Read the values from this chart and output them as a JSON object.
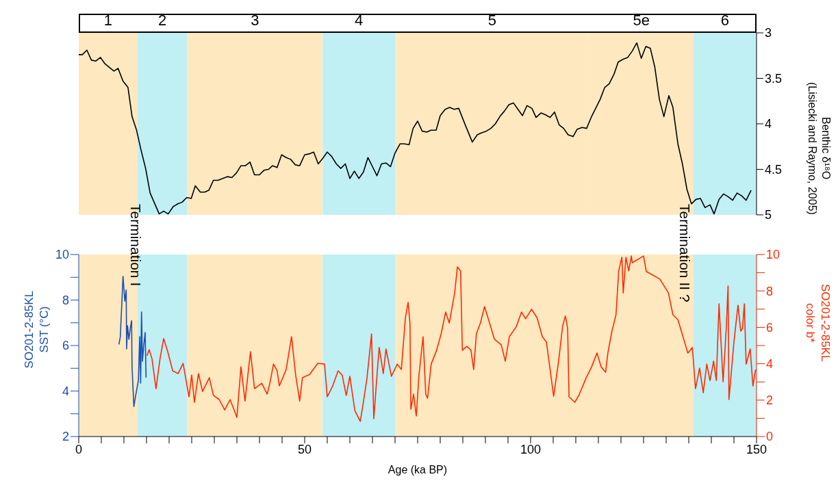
{
  "chart_data": [
    {
      "type": "line",
      "ylabel": "Benthic δ¹⁸O\n(Lisiecki and Raymo, 2005)",
      "xlim": [
        0,
        150
      ],
      "ylim": [
        5,
        3
      ],
      "yticks": [
        3,
        3.5,
        4,
        4.5,
        5
      ],
      "tick_labels": "y",
      "grid": false,
      "legend": false,
      "marker": "none",
      "bands": [
        {
          "axis": "x",
          "from": 0,
          "to": 13,
          "color": "#fde8c0",
          "label": "1"
        },
        {
          "axis": "x",
          "from": 13,
          "to": 24,
          "color": "#c0eff4",
          "label": "2"
        },
        {
          "axis": "x",
          "from": 24,
          "to": 54,
          "color": "#fde8c0",
          "label": "3"
        },
        {
          "axis": "x",
          "from": 54,
          "to": 70,
          "color": "#c0eff4",
          "label": "4"
        },
        {
          "axis": "x",
          "from": 70,
          "to": 113,
          "color": "#fde8c0",
          "label": "5"
        },
        {
          "axis": "x",
          "from": 113,
          "to": 136,
          "color": "#fde8c0",
          "label": "5e"
        },
        {
          "axis": "x",
          "from": 136,
          "to": 150,
          "color": "#c0eff4",
          "label": "6"
        }
      ],
      "series": [
        {
          "color": "#000000",
          "x": [
            0,
            0.8,
            1.8,
            2.8,
            3.8,
            4.8,
            5.8,
            6.8,
            7.8,
            8.7,
            9.8,
            10.9,
            11.8,
            12.8,
            13.8,
            14.8,
            15.8,
            17.8,
            18.8,
            19.8,
            20.9,
            21.9,
            22.9,
            23.9,
            24.9,
            25.8,
            26.9,
            27.9,
            28.8,
            29.8,
            30.8,
            31.9,
            32.9,
            33.9,
            34.9,
            35.9,
            36.9,
            37.9,
            38.9,
            40.0,
            41.0,
            42.0,
            42.9,
            43.9,
            44.9,
            45.9,
            46.9,
            47.9,
            48.9,
            50.0,
            51.0,
            52.0,
            53.0,
            54.0,
            55.0,
            56.0,
            57.0,
            58.0,
            59.0,
            60.0,
            61.0,
            62.0,
            63.0,
            64.0,
            65.0,
            66.0,
            67.0,
            68.0,
            69.0,
            70.0,
            71.1,
            72.1,
            73.1,
            74.0,
            75.0,
            76.0,
            77.0,
            78.0,
            79.1,
            80.0,
            81.1,
            82.1,
            83.1,
            84.1,
            85.6,
            87.1,
            88.2,
            89.1,
            90.2,
            91.2,
            92.2,
            93.2,
            94.2,
            95.2,
            96.2,
            97.2,
            98.2,
            99.2,
            100.3,
            101.2,
            102.3,
            103.3,
            104.3,
            105.3,
            106.3,
            107.3,
            108.3,
            109.4,
            110.3,
            111.4,
            112.4,
            113.4,
            114.4,
            115.4,
            116.4,
            117.4,
            118.5,
            119.4,
            120.5,
            121.5,
            122.5,
            123.5,
            124.5,
            125.5,
            126.5,
            127.5,
            128.5,
            129.5,
            130.6,
            131.5,
            132.6,
            133.6,
            134.6,
            135.6,
            136.6,
            137.6,
            138.6,
            139.7,
            140.6,
            141.7,
            142.7,
            143.7,
            144.7,
            145.7,
            146.7,
            147.7,
            148.8
          ],
          "values": [
            3.24,
            3.24,
            3.19,
            3.3,
            3.31,
            3.27,
            3.34,
            3.38,
            3.42,
            3.39,
            3.53,
            3.6,
            3.92,
            4.07,
            4.29,
            4.49,
            4.76,
            4.99,
            4.96,
            4.99,
            4.91,
            4.88,
            4.86,
            4.81,
            4.82,
            4.68,
            4.75,
            4.75,
            4.73,
            4.62,
            4.62,
            4.6,
            4.58,
            4.59,
            4.54,
            4.46,
            4.46,
            4.42,
            4.56,
            4.56,
            4.51,
            4.5,
            4.46,
            4.48,
            4.34,
            4.37,
            4.39,
            4.45,
            4.46,
            4.34,
            4.33,
            4.31,
            4.44,
            4.38,
            4.31,
            4.36,
            4.44,
            4.49,
            4.44,
            4.6,
            4.52,
            4.6,
            4.53,
            4.37,
            4.47,
            4.57,
            4.44,
            4.43,
            4.47,
            4.32,
            4.22,
            4.22,
            4.23,
            4.05,
            3.97,
            4.08,
            4.09,
            4.07,
            4.07,
            3.91,
            3.84,
            3.82,
            3.84,
            3.83,
            4.02,
            4.2,
            4.12,
            4.1,
            4.08,
            4.05,
            4.0,
            3.92,
            3.86,
            3.79,
            3.77,
            3.84,
            3.91,
            3.8,
            3.83,
            3.93,
            3.88,
            3.9,
            3.93,
            3.87,
            4.01,
            4.05,
            4.12,
            4.14,
            4.06,
            4.04,
            4.05,
            3.93,
            3.83,
            3.73,
            3.6,
            3.56,
            3.45,
            3.32,
            3.29,
            3.27,
            3.2,
            3.11,
            3.28,
            3.15,
            3.17,
            3.38,
            3.73,
            3.92,
            3.69,
            3.82,
            4.22,
            4.44,
            4.72,
            4.88,
            4.83,
            4.82,
            4.92,
            4.89,
            4.99,
            4.83,
            4.77,
            4.8,
            4.84,
            4.76,
            4.79,
            4.84,
            4.73
          ]
        }
      ]
    },
    {
      "type": "line",
      "xlabel": "Age (ka BP)",
      "ylabel": "SO201-2-85KL\nSST (°C)",
      "y2label": "SO201-2-85KL\ncolor b*",
      "xlim": [
        0,
        150
      ],
      "xticks": [
        0,
        {
          "value": 5,
          "label": null
        },
        {
          "value": 10,
          "label": null
        },
        {
          "value": 15,
          "label": null
        },
        {
          "value": 20,
          "label": null
        },
        {
          "value": 25,
          "label": null
        },
        {
          "value": 30,
          "label": null
        },
        {
          "value": 35,
          "label": null
        },
        {
          "value": 40,
          "label": null
        },
        {
          "value": 45,
          "label": null
        },
        50,
        {
          "value": 55,
          "label": null
        },
        {
          "value": 60,
          "label": null
        },
        {
          "value": 65,
          "label": null
        },
        {
          "value": 70,
          "label": null
        },
        {
          "value": 75,
          "label": null
        },
        {
          "value": 80,
          "label": null
        },
        {
          "value": 85,
          "label": null
        },
        {
          "value": 90,
          "label": null
        },
        {
          "value": 95,
          "label": null
        },
        100,
        {
          "value": 105,
          "label": null
        },
        {
          "value": 110,
          "label": null
        },
        {
          "value": 115,
          "label": null
        },
        {
          "value": 120,
          "label": null
        },
        {
          "value": 125,
          "label": null
        },
        {
          "value": 130,
          "label": null
        },
        {
          "value": 135,
          "label": null
        },
        {
          "value": 140,
          "label": null
        },
        {
          "value": 145,
          "label": null
        },
        150
      ],
      "ylim": [
        2,
        10
      ],
      "yticks": [
        2,
        {
          "value": 3,
          "label": null
        },
        4,
        {
          "value": 5,
          "label": null
        },
        6,
        {
          "value": 7,
          "label": null
        },
        8,
        {
          "value": 9,
          "label": null
        },
        10
      ],
      "y2lim": [
        0,
        10
      ],
      "y2ticks": [
        0,
        {
          "value": 1,
          "label": null
        },
        2,
        {
          "value": 3,
          "label": null
        },
        4,
        {
          "value": 5,
          "label": null
        },
        6,
        {
          "value": 7,
          "label": null
        },
        8,
        {
          "value": 9,
          "label": null
        },
        10
      ],
      "grid": false,
      "legend": false,
      "marker": "none",
      "annotations": [
        "Termination I",
        "Termination II ?"
      ],
      "bands": [
        {
          "axis": "x",
          "from": 0,
          "to": 13,
          "color": "#fde8c0"
        },
        {
          "axis": "x",
          "from": 13,
          "to": 24,
          "color": "#c0eff4"
        },
        {
          "axis": "x",
          "from": 24,
          "to": 54,
          "color": "#fde8c0"
        },
        {
          "axis": "x",
          "from": 54,
          "to": 70,
          "color": "#c0eff4"
        },
        {
          "axis": "x",
          "from": 70,
          "to": 136,
          "color": "#fde8c0"
        },
        {
          "axis": "x",
          "from": 136,
          "to": 150,
          "color": "#c0eff4"
        }
      ],
      "series": [
        {
          "color": "#1a4fb0",
          "axis": "y",
          "x": [
            8.9,
            9.2,
            9.8,
            10.2,
            10.5,
            10.6,
            10.8,
            11.1,
            11.4,
            11.7,
            11.8,
            12.2,
            12.6,
            13.2,
            13.5,
            13.7,
            13.9,
            14.1,
            14.4,
            14.7,
            14.9
          ],
          "values": [
            6.05,
            6.39,
            9.04,
            7.95,
            8.44,
            5.85,
            6.87,
            6.27,
            6.75,
            7.09,
            5.07,
            3.32,
            3.8,
            4.47,
            6.39,
            4.35,
            7.47,
            5.31,
            6.03,
            6.57,
            4.59
          ]
        },
        {
          "color": "#ff2a00",
          "axis": "y2",
          "x": [
            15.1,
            15.6,
            16.2,
            17.1,
            18.0,
            18.8,
            19.7,
            20.8,
            22.0,
            23.1,
            24.4,
            25.0,
            25.6,
            26.5,
            27.4,
            28.9,
            29.8,
            31.1,
            32.3,
            33.5,
            35.0,
            35.9,
            36.8,
            38.0,
            38.9,
            40.5,
            41.7,
            42.3,
            43.1,
            43.9,
            44.4,
            45.9,
            47.1,
            48.0,
            48.9,
            49.5,
            51.1,
            52.9,
            54.4,
            55.0,
            56.2,
            57.4,
            58.3,
            59.2,
            60.0,
            61.1,
            62.3,
            62.9,
            63.8,
            64.8,
            65.3,
            66.1,
            66.5,
            67.4,
            68.0,
            69.2,
            70.5,
            71.4,
            72.3,
            72.9,
            73.3,
            73.5,
            74.1,
            74.7,
            75.3,
            76.2,
            76.8,
            77.2,
            78.0,
            79.2,
            80.2,
            81.2,
            82.0,
            83.2,
            83.8,
            84.5,
            84.9,
            85.9,
            86.8,
            87.4,
            88.0,
            88.9,
            89.8,
            91.1,
            92.0,
            93.5,
            94.4,
            95.3,
            96.8,
            98.0,
            98.9,
            100.2,
            101.4,
            102.6,
            103.5,
            104.4,
            105.1,
            106.2,
            107.1,
            107.7,
            108.2,
            108.5,
            109.8,
            110.8,
            112.3,
            113.5,
            114.7,
            115.6,
            116.6,
            117.1,
            118.0,
            118.9,
            119.5,
            120.2,
            120.5,
            121.1,
            121.7,
            122.3,
            122.5,
            125.0,
            125.6,
            128.6,
            130.5,
            131.5,
            132.6,
            134.8,
            135.8,
            136.5,
            137.4,
            138.2,
            139.0,
            139.7,
            140.5,
            141.1,
            141.7,
            142.6,
            143.3,
            143.7,
            143.9,
            145.0,
            145.9,
            146.5,
            146.9,
            147.3,
            147.7,
            148.6,
            149.2,
            149.8
          ],
          "values": [
            4.44,
            4.77,
            4.29,
            2.63,
            4.29,
            5.38,
            4.66,
            3.61,
            3.46,
            4.02,
            2.18,
            3.38,
            1.88,
            3.46,
            2.48,
            3.23,
            2.26,
            2.03,
            1.46,
            2.03,
            1.05,
            3.83,
            1.95,
            4.66,
            2.63,
            2.93,
            2.33,
            2.93,
            3.98,
            3.61,
            2.78,
            3.68,
            5.49,
            3.38,
            1.95,
            3.23,
            3.41,
            4.02,
            3.98,
            2.18,
            2.78,
            3.61,
            3.38,
            2.26,
            3.31,
            1.43,
            0.83,
            1.73,
            3.23,
            5.64,
            0.98,
            3.68,
            4.89,
            3.46,
            4.81,
            3.31,
            3.98,
            3.68,
            6.54,
            7.37,
            6.24,
            1.5,
            2.33,
            1.13,
            3.38,
            5.49,
            2.33,
            2.11,
            3.98,
            4.74,
            5.64,
            6.84,
            6.24,
            7.89,
            9.32,
            9.1,
            4.74,
            4.96,
            4.74,
            3.68,
            5.64,
            6.24,
            7.14,
            6.09,
            5.34,
            5.04,
            4.14,
            5.49,
            6.02,
            6.84,
            6.47,
            6.99,
            6.54,
            5.49,
            5.19,
            3.53,
            2.21,
            4.14,
            6.09,
            6.62,
            5.94,
            2.18,
            1.88,
            2.33,
            3.23,
            3.83,
            4.59,
            3.83,
            3.53,
            4.59,
            5.79,
            6.69,
            9.1,
            9.85,
            7.89,
            9.85,
            9.1,
            9.92,
            9.55,
            9.92,
            9.07,
            8.65,
            7.89,
            6.69,
            6.42,
            4.59,
            4.89,
            2.63,
            3.76,
            2.41,
            3.98,
            3.08,
            4.14,
            3.08,
            7.29,
            3.01,
            5.94,
            8.27,
            2.03,
            5.19,
            7.22,
            5.79,
            5.94,
            7.29,
            3.98,
            4.81,
            2.78,
            3.68
          ]
        }
      ]
    }
  ]
}
